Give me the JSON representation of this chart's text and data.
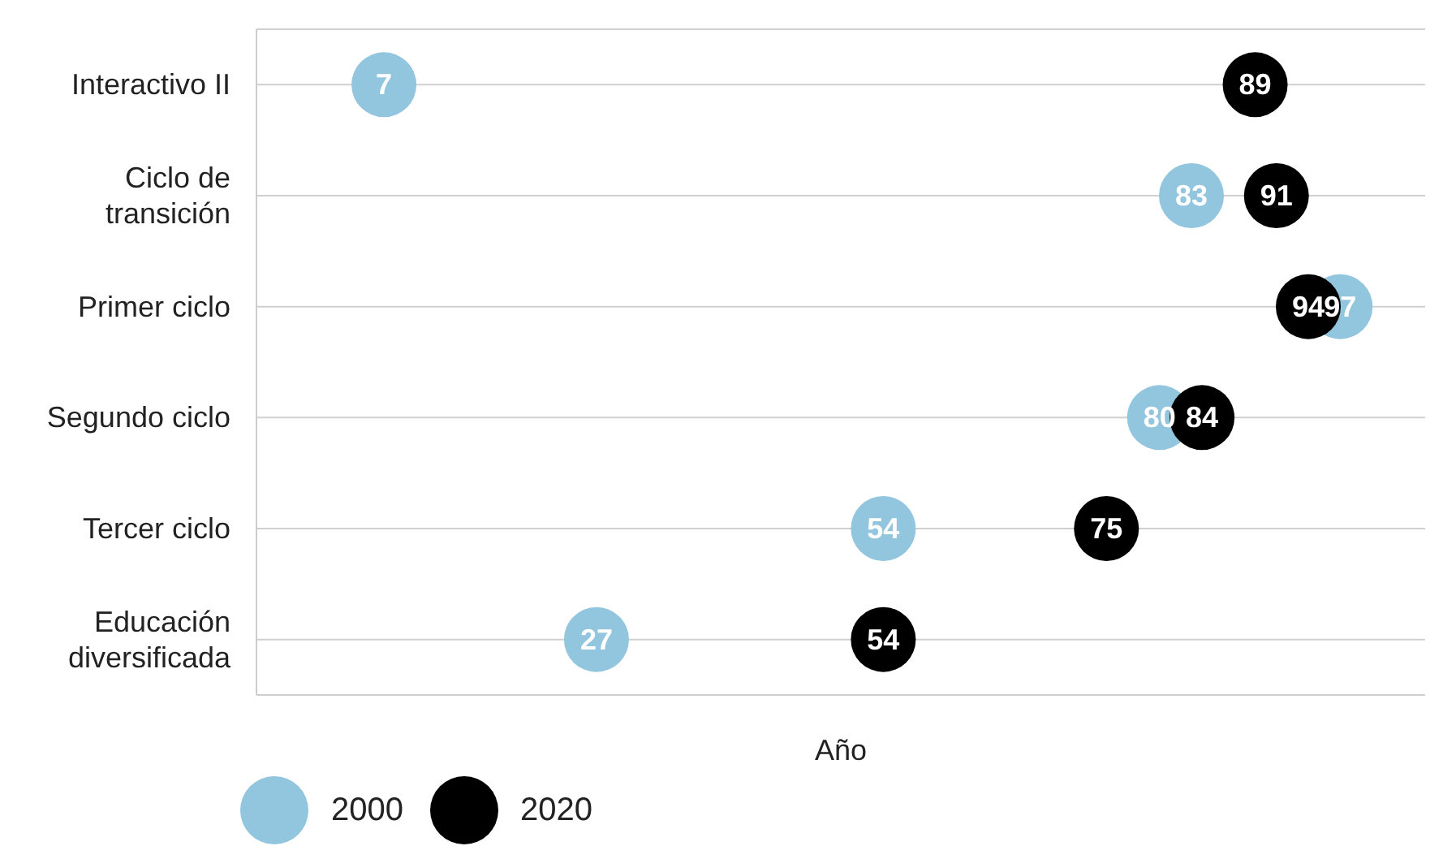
{
  "chart_data": {
    "type": "scatter",
    "orientation": "horizontal",
    "xlabel": "Año",
    "categories": [
      "Interactivo II",
      "Ciclo de transición",
      "Primer ciclo",
      "Segundo ciclo",
      "Tercer ciclo",
      "Educación diversificada"
    ],
    "series": [
      {
        "name": "2000",
        "color": "#92c5de",
        "values": [
          7,
          83,
          97,
          80,
          54,
          27
        ]
      },
      {
        "name": "2020",
        "color": "#000000",
        "values": [
          89,
          91,
          94,
          84,
          75,
          54
        ]
      }
    ],
    "xlim": [
      -5,
      105
    ],
    "data_labels": true,
    "grid": "y",
    "legend": "bottom left",
    "tick_labels": "y",
    "marker": "circle"
  }
}
